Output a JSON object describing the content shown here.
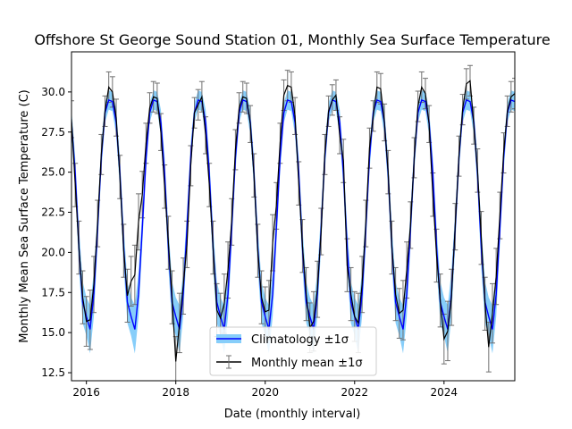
{
  "chart_data": {
    "type": "line",
    "title": "Offshore St George Sound Station 01, Monthly Sea Surface Temperature",
    "xlabel": "Date (monthly interval)",
    "ylabel": "Monthly Mean Sea Surface Temperature (C)",
    "xlim": [
      "2015-09",
      "2025-08"
    ],
    "ylim": [
      12.0,
      32.5
    ],
    "x_ticks": [
      "2016",
      "2018",
      "2020",
      "2022",
      "2024"
    ],
    "y_ticks": [
      "12.5",
      "15.0",
      "17.5",
      "20.0",
      "22.5",
      "25.0",
      "27.5",
      "30.0"
    ],
    "grid": false,
    "legend_position": "lower center",
    "climatology": {
      "name": "Climatology ±1σ",
      "color": "#0000ff",
      "band_color": "#87cefa",
      "months": [
        "Jan",
        "Feb",
        "Mar",
        "Apr",
        "May",
        "Jun",
        "Jul",
        "Aug",
        "Sep",
        "Oct",
        "Nov",
        "Dec"
      ],
      "mean": [
        16.0,
        15.2,
        17.4,
        21.5,
        25.9,
        28.7,
        29.5,
        29.4,
        28.1,
        24.9,
        20.3,
        16.9
      ],
      "std": [
        1.2,
        1.5,
        1.4,
        1.1,
        0.9,
        0.6,
        0.6,
        0.6,
        0.8,
        1.0,
        1.3,
        1.3
      ]
    },
    "series": [
      {
        "name": "Monthly mean ±1σ",
        "color": "#000000",
        "errorbar_color": "#707070",
        "start": "2015-09",
        "values": [
          28.3,
          24.2,
          20.3,
          17.2,
          15.7,
          15.8,
          18.0,
          21.8,
          26.1,
          28.8,
          30.3,
          30.0,
          28.4,
          24.7,
          20.1,
          17.3,
          18.2,
          18.6,
          21.9,
          23.6,
          26.8,
          29.0,
          29.7,
          29.6,
          27.5,
          24.1,
          20.6,
          17.2,
          13.2,
          15.6,
          17.9,
          20.5,
          25.4,
          28.7,
          29.2,
          29.7,
          27.3,
          24.2,
          20.3,
          16.4,
          15.9,
          16.8,
          18.9,
          21.9,
          26.4,
          29.0,
          29.7,
          29.6,
          28.0,
          24.8,
          20.1,
          17.2,
          16.3,
          16.4,
          20.6,
          22.9,
          26.8,
          29.8,
          30.4,
          30.3,
          28.5,
          24.3,
          20.4,
          17.4,
          15.3,
          15.7,
          17.7,
          21.3,
          26.1,
          28.8,
          29.5,
          29.8,
          27.3,
          25.7,
          19.2,
          17.4,
          16.0,
          15.6,
          18.0,
          21.8,
          26.5,
          28.5,
          30.3,
          30.2,
          28.1,
          25.0,
          20.3,
          17.4,
          16.2,
          16.4,
          18.9,
          21.7,
          25.9,
          29.1,
          30.3,
          29.9,
          28.0,
          23.6,
          19.8,
          17.0,
          14.6,
          15.1,
          17.2,
          21.6,
          26.0,
          28.9,
          30.5,
          30.7,
          27.9,
          25.1,
          20.9,
          16.8,
          14.1,
          16.2,
          18.5,
          22.3,
          26.2,
          28.8,
          29.7,
          29.9
        ]
      }
    ]
  }
}
